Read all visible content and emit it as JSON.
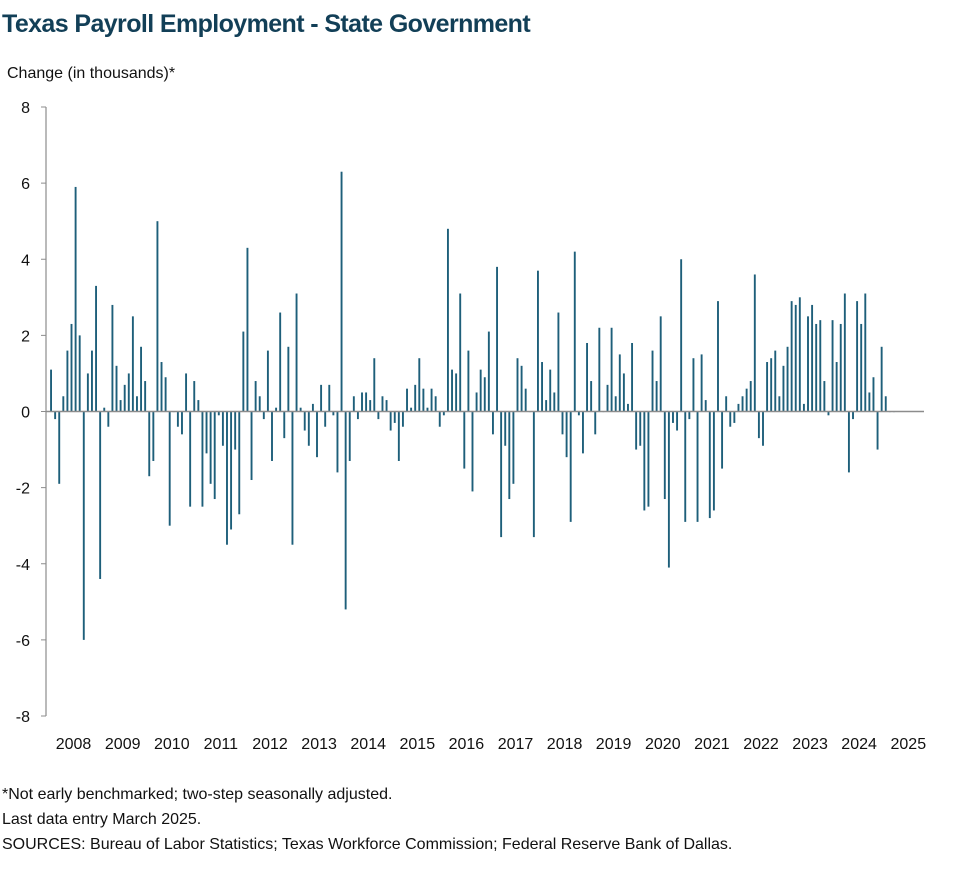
{
  "chart_data": {
    "type": "bar",
    "title": "Texas Payroll Employment - State Government",
    "ylabel": "Change (in thousands)*",
    "xlabel": "",
    "ylim": [
      -8,
      8
    ],
    "yticks": [
      8,
      6,
      4,
      2,
      0,
      -2,
      -4,
      -6,
      -8
    ],
    "x_tick_labels": [
      "2008",
      "2009",
      "2010",
      "2011",
      "2012",
      "2013",
      "2014",
      "2015",
      "2016",
      "2017",
      "2018",
      "2019",
      "2020",
      "2021",
      "2022",
      "2023",
      "2024",
      "2025"
    ],
    "frequency": "monthly",
    "start": "2008-01",
    "end": "2025-03",
    "grid": false,
    "bar_color": "#1e5f7a",
    "axis_color": "#8c8c8c",
    "values": [
      1.1,
      -0.2,
      -1.9,
      0.4,
      1.6,
      2.3,
      5.9,
      2.0,
      -6.0,
      1.0,
      1.6,
      3.3,
      -4.4,
      0.1,
      -0.4,
      2.8,
      1.2,
      0.3,
      0.7,
      1.0,
      2.5,
      0.4,
      1.7,
      0.8,
      -1.7,
      -1.3,
      5.0,
      1.3,
      0.9,
      -3.0,
      0.0,
      -0.4,
      -0.6,
      1.0,
      -2.5,
      0.8,
      0.3,
      -2.5,
      -1.1,
      -1.9,
      -2.3,
      -0.1,
      -0.9,
      -3.5,
      -3.1,
      -1.0,
      -2.7,
      2.1,
      4.3,
      -1.8,
      0.8,
      0.4,
      -0.2,
      1.6,
      -1.3,
      0.1,
      2.6,
      -0.7,
      1.7,
      -3.5,
      3.1,
      0.1,
      -0.5,
      -0.9,
      0.2,
      -1.2,
      0.7,
      -0.4,
      0.7,
      -0.1,
      -1.6,
      6.3,
      -5.2,
      -1.3,
      0.4,
      -0.2,
      0.5,
      0.5,
      0.3,
      1.4,
      -0.2,
      0.4,
      0.3,
      -0.5,
      -0.3,
      -1.3,
      -0.4,
      0.6,
      0.1,
      0.7,
      1.4,
      0.6,
      0.1,
      0.6,
      0.4,
      -0.4,
      -0.1,
      4.8,
      1.1,
      1.0,
      3.1,
      -1.5,
      1.6,
      -2.1,
      0.5,
      1.1,
      0.9,
      2.1,
      -0.6,
      3.8,
      -3.3,
      -0.9,
      -2.3,
      -1.9,
      1.4,
      1.2,
      0.6,
      0.0,
      -3.3,
      3.7,
      1.3,
      0.3,
      1.1,
      0.5,
      2.6,
      -0.6,
      -1.2,
      -2.9,
      4.2,
      -0.1,
      -1.1,
      1.8,
      0.8,
      -0.6,
      2.2,
      0.0,
      0.7,
      2.2,
      0.4,
      1.5,
      1.0,
      0.2,
      1.8,
      -1.0,
      -0.9,
      -2.6,
      -2.5,
      1.6,
      0.8,
      2.5,
      -2.3,
      -4.1,
      -0.3,
      -0.5,
      4.0,
      -2.9,
      -0.2,
      1.4,
      -2.9,
      1.5,
      0.3,
      -2.8,
      -2.6,
      2.9,
      -1.5,
      0.4,
      -0.4,
      -0.3,
      0.2,
      0.4,
      0.6,
      0.8,
      3.6,
      -0.7,
      -0.9,
      1.3,
      1.4,
      1.6,
      0.4,
      1.2,
      1.7,
      2.9,
      2.8,
      3.0,
      0.2,
      2.5,
      2.8,
      2.3,
      2.4,
      0.8,
      -0.1,
      2.4,
      1.3,
      2.3,
      3.1,
      -1.6,
      -0.2,
      2.9,
      2.3,
      3.1,
      0.5,
      0.9,
      -1.0,
      1.7,
      0.4,
      0.0,
      0.0
    ]
  },
  "notes": [
    "*Not early benchmarked; two-step seasonally adjusted.",
    "Last data entry March 2025.",
    "SOURCES:  Bureau of Labor Statistics; Texas Workforce Commission;  Federal Reserve Bank of Dallas."
  ]
}
